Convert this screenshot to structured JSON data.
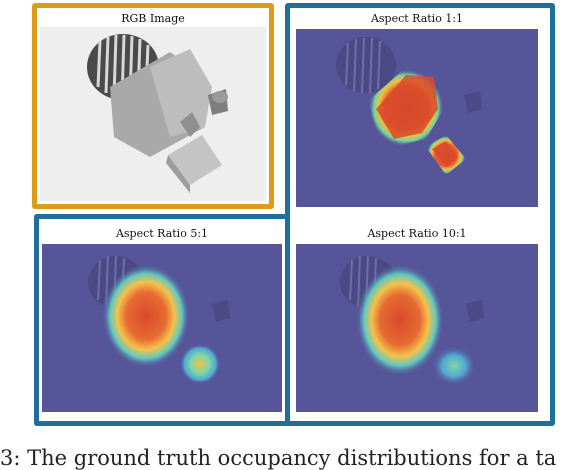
{
  "panels": {
    "rgb": {
      "title": "RGB Image"
    },
    "ar1": {
      "title": "Aspect Ratio 1:1"
    },
    "ar5": {
      "title": "Aspect Ratio 5:1"
    },
    "ar10": {
      "title": "Aspect Ratio 10:1"
    }
  },
  "caption": "3: The ground truth occupancy distributions for a ta",
  "colors": {
    "rgb_frame": "#e09a1a",
    "heatmap_frame": "#1f6f9c",
    "heatmap_background": "#56559a",
    "hot_core": "#d94a2a"
  }
}
